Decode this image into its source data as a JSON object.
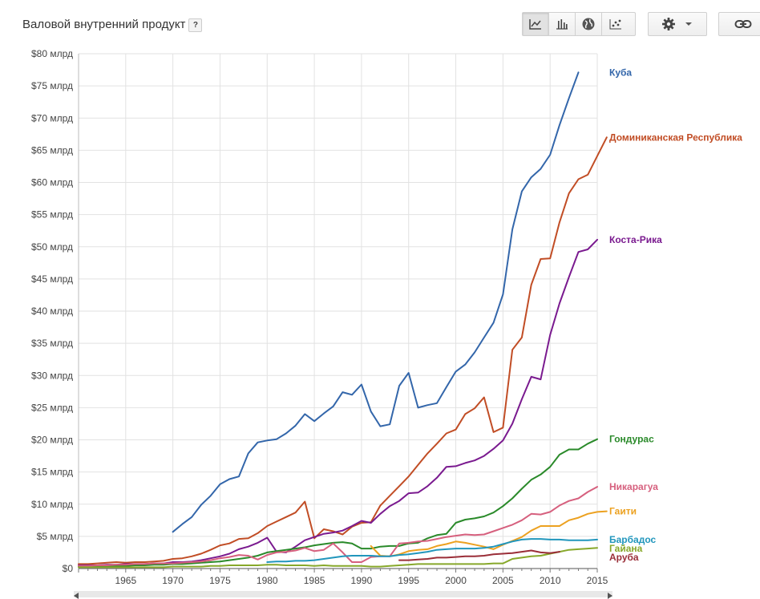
{
  "header": {
    "title": "Валовой внутренний продукт",
    "help_label": "?"
  },
  "toolbar": {
    "buttons": [
      {
        "name": "line-chart",
        "icon": "line-chart-icon",
        "active": true
      },
      {
        "name": "bar-chart",
        "icon": "bar-chart-icon",
        "active": false
      },
      {
        "name": "map",
        "icon": "globe-icon",
        "active": false
      },
      {
        "name": "scatter",
        "icon": "scatter-icon",
        "active": false
      }
    ],
    "settings_icon": "gear-icon",
    "link_icon": "link-icon"
  },
  "colors": {
    "grid": "#e2e2e2",
    "axis_text": "#444444"
  },
  "chart_data": {
    "type": "line",
    "title": "Валовой внутренний продукт",
    "xlabel": "",
    "ylabel": "",
    "xlim": [
      1960,
      2015
    ],
    "ylim": [
      0,
      80
    ],
    "x_ticks": [
      1965,
      1970,
      1975,
      1980,
      1985,
      1990,
      1995,
      2000,
      2005,
      2010,
      2015
    ],
    "y_ticks": [
      {
        "value": 0,
        "label": "$0"
      },
      {
        "value": 5,
        "label": "$5 млрд"
      },
      {
        "value": 10,
        "label": "$10 млрд"
      },
      {
        "value": 15,
        "label": "$15 млрд"
      },
      {
        "value": 20,
        "label": "$20 млрд"
      },
      {
        "value": 25,
        "label": "$25 млрд"
      },
      {
        "value": 30,
        "label": "$30 млрд"
      },
      {
        "value": 35,
        "label": "$35 млрд"
      },
      {
        "value": 40,
        "label": "$40 млрд"
      },
      {
        "value": 45,
        "label": "$45 млрд"
      },
      {
        "value": 50,
        "label": "$50 млрд"
      },
      {
        "value": 55,
        "label": "$55 млрд"
      },
      {
        "value": 60,
        "label": "$60 млрд"
      },
      {
        "value": 65,
        "label": "$65 млрд"
      },
      {
        "value": 70,
        "label": "$70 млрд"
      },
      {
        "value": 75,
        "label": "$75 млрд"
      },
      {
        "value": 80,
        "label": "$80 млрд"
      }
    ],
    "grid": true,
    "legend": "right",
    "series": [
      {
        "name": "Куба",
        "color": "#3366aa",
        "start": 1970,
        "values": [
          5.7,
          6.9,
          8.0,
          9.9,
          11.3,
          13.1,
          13.9,
          14.3,
          17.9,
          19.6,
          19.9,
          20.1,
          21.0,
          22.2,
          24.0,
          22.9,
          24.1,
          25.2,
          27.4,
          27.0,
          28.6,
          24.4,
          22.1,
          22.4,
          28.4,
          30.4,
          25.0,
          25.4,
          25.7,
          28.2,
          30.6,
          31.7,
          33.6,
          35.9,
          38.2,
          42.6,
          52.7,
          58.6,
          60.8,
          62.1,
          64.3,
          68.9,
          73.1,
          77.1
        ]
      },
      {
        "name": "Доминиканская Республика",
        "color": "#c14d25",
        "start": 1960,
        "values": [
          0.7,
          0.7,
          0.8,
          0.9,
          1.0,
          0.9,
          1.0,
          1.0,
          1.1,
          1.2,
          1.5,
          1.6,
          1.9,
          2.3,
          2.9,
          3.6,
          3.9,
          4.6,
          4.7,
          5.5,
          6.6,
          7.3,
          8.0,
          8.7,
          10.4,
          4.7,
          6.1,
          5.8,
          5.3,
          6.5,
          7.1,
          7.2,
          9.8,
          11.3,
          12.8,
          14.3,
          16.1,
          17.9,
          19.4,
          21.0,
          21.6,
          24.0,
          24.9,
          26.6,
          21.2,
          21.9,
          34.0,
          35.9,
          44.1,
          48.1,
          48.2,
          53.8,
          58.3,
          60.5,
          61.2,
          64.1,
          67.0
        ]
      },
      {
        "name": "Коста-Рика",
        "color": "#7a1a8f",
        "start": 1960,
        "values": [
          0.5,
          0.5,
          0.5,
          0.6,
          0.6,
          0.7,
          0.7,
          0.7,
          0.8,
          0.8,
          1.0,
          1.0,
          1.1,
          1.3,
          1.6,
          1.9,
          2.3,
          3.0,
          3.4,
          4.0,
          4.8,
          2.6,
          2.5,
          3.4,
          4.4,
          4.9,
          5.4,
          5.6,
          5.9,
          6.6,
          7.4,
          7.1,
          8.5,
          9.7,
          10.5,
          11.7,
          11.8,
          12.8,
          14.1,
          15.8,
          15.9,
          16.4,
          16.8,
          17.5,
          18.6,
          19.9,
          22.5,
          26.3,
          29.8,
          29.4,
          36.3,
          41.2,
          45.3,
          49.2,
          49.6,
          51.1
        ]
      },
      {
        "name": "Гондурас",
        "color": "#2a8a2a",
        "start": 1960,
        "values": [
          0.3,
          0.3,
          0.3,
          0.3,
          0.4,
          0.4,
          0.5,
          0.5,
          0.6,
          0.6,
          0.7,
          0.7,
          0.8,
          0.9,
          1.0,
          1.1,
          1.3,
          1.5,
          1.7,
          2.0,
          2.5,
          2.7,
          2.9,
          3.1,
          3.3,
          3.6,
          3.8,
          4.0,
          4.1,
          3.9,
          3.1,
          3.1,
          3.4,
          3.5,
          3.5,
          3.9,
          4.0,
          4.7,
          5.2,
          5.4,
          7.1,
          7.6,
          7.8,
          8.1,
          8.7,
          9.7,
          10.9,
          12.4,
          13.8,
          14.6,
          15.8,
          17.7,
          18.5,
          18.5,
          19.4,
          20.1
        ]
      },
      {
        "name": "Никарагуа",
        "color": "#d6607e",
        "start": 1960,
        "values": [
          0.4,
          0.4,
          0.5,
          0.5,
          0.6,
          0.6,
          0.7,
          0.7,
          0.8,
          0.8,
          0.8,
          0.9,
          1.0,
          1.1,
          1.3,
          1.6,
          1.8,
          2.1,
          2.0,
          1.4,
          2.1,
          2.5,
          2.6,
          2.8,
          3.2,
          2.7,
          2.9,
          3.9,
          2.5,
          1.0,
          1.0,
          1.8,
          1.9,
          1.9,
          3.9,
          4.0,
          4.2,
          4.3,
          4.6,
          4.9,
          5.1,
          5.3,
          5.2,
          5.3,
          5.8,
          6.3,
          6.8,
          7.5,
          8.5,
          8.4,
          8.8,
          9.8,
          10.5,
          10.9,
          11.9,
          12.7
        ]
      },
      {
        "name": "Гаити",
        "color": "#eca120",
        "start": 1991,
        "values": [
          3.5,
          2.0,
          1.9,
          2.2,
          2.7,
          2.9,
          3.0,
          3.5,
          3.8,
          4.2,
          4.0,
          3.7,
          3.4,
          3.0,
          3.7,
          4.3,
          4.9,
          5.9,
          6.6,
          6.6,
          6.6,
          7.5,
          7.9,
          8.5,
          8.8,
          8.9
        ]
      },
      {
        "name": "Барбадос",
        "color": "#2196bc",
        "start": 1980,
        "values": [
          1.0,
          1.1,
          1.1,
          1.2,
          1.2,
          1.3,
          1.5,
          1.7,
          1.9,
          2.0,
          2.0,
          2.0,
          1.9,
          1.9,
          2.1,
          2.2,
          2.4,
          2.6,
          2.9,
          3.0,
          3.1,
          3.1,
          3.1,
          3.2,
          3.4,
          3.8,
          4.2,
          4.5,
          4.6,
          4.6,
          4.5,
          4.5,
          4.4,
          4.4,
          4.4,
          4.5
        ]
      },
      {
        "name": "Гайана",
        "color": "#87a82a",
        "start": 1960,
        "values": [
          0.2,
          0.2,
          0.2,
          0.2,
          0.2,
          0.2,
          0.2,
          0.2,
          0.2,
          0.2,
          0.3,
          0.3,
          0.3,
          0.3,
          0.4,
          0.4,
          0.5,
          0.5,
          0.5,
          0.5,
          0.6,
          0.6,
          0.5,
          0.5,
          0.5,
          0.4,
          0.5,
          0.4,
          0.4,
          0.4,
          0.4,
          0.3,
          0.3,
          0.4,
          0.5,
          0.6,
          0.7,
          0.7,
          0.7,
          0.7,
          0.7,
          0.7,
          0.7,
          0.7,
          0.8,
          0.8,
          1.5,
          1.7,
          1.9,
          2.0,
          2.3,
          2.6,
          2.9,
          3.0,
          3.1,
          3.2
        ]
      },
      {
        "name": "Аруба",
        "color": "#9a2e38",
        "start": 1994,
        "values": [
          1.3,
          1.3,
          1.4,
          1.5,
          1.7,
          1.7,
          1.8,
          1.9,
          1.9,
          2.0,
          2.2,
          2.3,
          2.4,
          2.6,
          2.8,
          2.5,
          2.4,
          2.6
        ]
      }
    ]
  }
}
